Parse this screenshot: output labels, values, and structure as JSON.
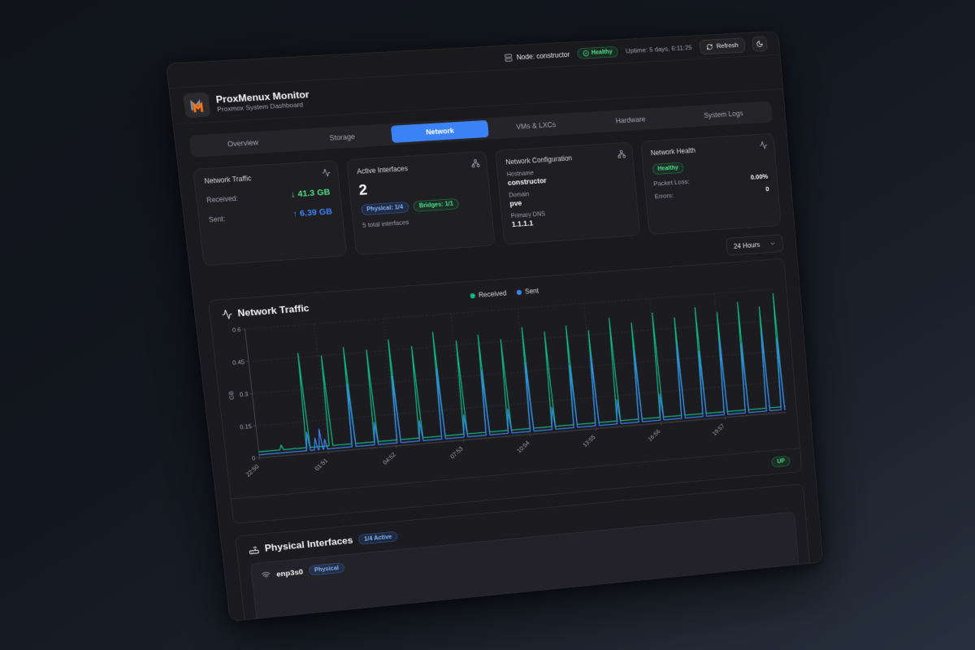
{
  "topbar": {
    "node_label": "Node: constructor",
    "health_badge": "Healthy",
    "uptime": "Uptime: 5 days, 6:11:25",
    "refresh_label": "Refresh"
  },
  "header": {
    "title": "ProxMenux Monitor",
    "subtitle": "Proxmox System Dashboard"
  },
  "tabs": {
    "items": [
      {
        "label": "Overview",
        "active": false
      },
      {
        "label": "Storage",
        "active": false
      },
      {
        "label": "Network",
        "active": true
      },
      {
        "label": "VMs & LXCs",
        "active": false
      },
      {
        "label": "Hardware",
        "active": false
      },
      {
        "label": "System Logs",
        "active": false
      }
    ]
  },
  "cards": {
    "traffic": {
      "title": "Network Traffic",
      "received_label": "Received:",
      "received_value": "↓ 41.3 GB",
      "sent_label": "Sent:",
      "sent_value": "↑ 6.39 GB"
    },
    "interfaces": {
      "title": "Active Interfaces",
      "count": "2",
      "physical_badge": "Physical: 1/4",
      "bridges_badge": "Bridges: 1/1",
      "total_note": "5 total interfaces"
    },
    "config": {
      "title": "Network Configuration",
      "hostname_label": "Hostname",
      "hostname": "constructor",
      "domain_label": "Domain",
      "domain": "pve",
      "dns_label": "Primary DNS",
      "dns": "1.1.1.1"
    },
    "health": {
      "title": "Network Health",
      "status_badge": "Healthy",
      "packet_loss_label": "Packet Loss:",
      "packet_loss": "0.00%",
      "errors_label": "Errors:",
      "errors": "0"
    }
  },
  "toolbar": {
    "range": "24 Hours"
  },
  "chart_card": {
    "title": "Network Traffic",
    "status_badge": "UP"
  },
  "chart_data": {
    "type": "line",
    "title": "Network Traffic",
    "ylabel": "GB",
    "ylim": [
      0,
      0.6
    ],
    "yticks": [
      0,
      0.15,
      0.3,
      0.45,
      0.6
    ],
    "x_total_minutes": 1440,
    "xtick_minutes": [
      0,
      181,
      362,
      543,
      724,
      905,
      1086,
      1267
    ],
    "xtick_labels": [
      "22:50",
      "01:51",
      "04:52",
      "07:53",
      "10:54",
      "13:55",
      "16:56",
      "19:57"
    ],
    "grid": "dashed",
    "legend_position": "top-center",
    "series": [
      {
        "name": "Received",
        "color": "#10b981",
        "baseline_gb": 0.028,
        "spikes": [
          [
            60,
            0.05
          ],
          [
            95,
            0.03
          ],
          [
            130,
            0.47
          ],
          [
            190,
            0.45
          ],
          [
            250,
            0.48
          ],
          [
            310,
            0.46
          ],
          [
            370,
            0.5
          ],
          [
            430,
            0.46
          ],
          [
            490,
            0.52
          ],
          [
            550,
            0.47
          ],
          [
            610,
            0.49
          ],
          [
            670,
            0.46
          ],
          [
            730,
            0.51
          ],
          [
            790,
            0.48
          ],
          [
            850,
            0.5
          ],
          [
            910,
            0.47
          ],
          [
            970,
            0.52
          ],
          [
            1030,
            0.49
          ],
          [
            1090,
            0.53
          ],
          [
            1150,
            0.5
          ],
          [
            1210,
            0.54
          ],
          [
            1270,
            0.51
          ],
          [
            1330,
            0.55
          ],
          [
            1390,
            0.52
          ],
          [
            1432,
            0.58
          ]
        ]
      },
      {
        "name": "Sent",
        "color": "#3b82f6",
        "baseline_gb": 0.014,
        "spikes": [
          [
            130,
            0.1
          ],
          [
            150,
            0.07
          ],
          [
            163,
            0.11
          ],
          [
            175,
            0.06
          ],
          [
            250,
            0.31
          ],
          [
            310,
            0.12
          ],
          [
            370,
            0.33
          ],
          [
            430,
            0.11
          ],
          [
            490,
            0.35
          ],
          [
            550,
            0.12
          ],
          [
            610,
            0.32
          ],
          [
            670,
            0.13
          ],
          [
            730,
            0.34
          ],
          [
            790,
            0.12
          ],
          [
            850,
            0.31
          ],
          [
            910,
            0.36
          ],
          [
            970,
            0.13
          ],
          [
            1030,
            0.36
          ],
          [
            1090,
            0.14
          ],
          [
            1150,
            0.37
          ],
          [
            1210,
            0.33
          ],
          [
            1270,
            0.38
          ],
          [
            1330,
            0.35
          ],
          [
            1390,
            0.4
          ],
          [
            1432,
            0.36
          ]
        ]
      }
    ]
  },
  "physical_section": {
    "title": "Physical Interfaces",
    "active_badge": "1/4 Active",
    "rows": [
      {
        "name": "enp3s0",
        "type_badge": "Physical"
      }
    ]
  },
  "colors": {
    "accent_blue": "#3b82f6",
    "green": "#4ade80",
    "brand_orange": "#f97316"
  }
}
